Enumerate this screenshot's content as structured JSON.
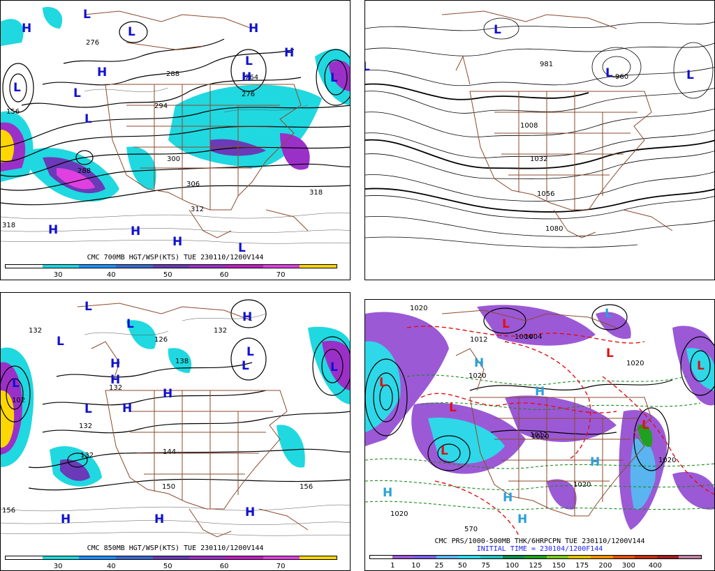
{
  "panels": [
    {
      "id": "p700",
      "caption": "CMC 700MB HGT/WSP(KTS) TUE 230110/1200V144",
      "colorbar": {
        "colors": [
          "#ffffff",
          "#20d8e0",
          "#1e90ff",
          "#3a6ad0",
          "#6a3ab8",
          "#9b30c8",
          "#c020c0",
          "#e040e0",
          "#ffd700"
        ],
        "ticks": [
          "30",
          "40",
          "50",
          "60",
          "70"
        ]
      },
      "contour_labels": [
        "276",
        "288",
        "264",
        "276",
        "294",
        "300",
        "306",
        "312",
        "318",
        "318",
        "156",
        "288"
      ],
      "pressure_centers": [
        "H",
        "L",
        "L",
        "H",
        "H",
        "H",
        "L",
        "H",
        "L",
        "L",
        "L",
        "L",
        "H",
        "H",
        "H",
        "L"
      ]
    },
    {
      "id": "pslp",
      "caption": "",
      "contour_labels": [
        "981",
        "960",
        "1008",
        "1032",
        "1056",
        "1080"
      ],
      "pressure_centers": [
        "L",
        "L",
        "L",
        "L"
      ]
    },
    {
      "id": "p850",
      "caption": "CMC 850MB HGT/WSP(KTS) TUE 230110/1200V144",
      "colorbar": {
        "colors": [
          "#ffffff",
          "#20d8e0",
          "#1e90ff",
          "#3a6ad0",
          "#6a3ab8",
          "#9b30c8",
          "#c020c0",
          "#e040e0",
          "#ffd700"
        ],
        "ticks": [
          "30",
          "40",
          "50",
          "60",
          "70"
        ]
      },
      "contour_labels": [
        "132",
        "132",
        "138",
        "126",
        "132",
        "144",
        "150",
        "156",
        "156",
        "132",
        "132",
        "102"
      ],
      "pressure_centers": [
        "L",
        "L",
        "L",
        "H",
        "H",
        "H",
        "L",
        "H",
        "H",
        "L",
        "L",
        "L",
        "H",
        "H",
        "H",
        "L"
      ]
    },
    {
      "id": "pprs",
      "caption": "CMC PRS/1000-500MB THK/6HRPCPN TUE 230110/1200V144",
      "caption2": "INITIAL TIME = 230104/1200F144",
      "colorbar": {
        "colors": [
          "#ffffff",
          "#9b59d6",
          "#7a5fe8",
          "#5ab4f0",
          "#2ed8e8",
          "#20c0c0",
          "#0c8c4c",
          "#20a020",
          "#78c820",
          "#e0c000",
          "#f09000",
          "#e05010",
          "#c03010",
          "#a02020",
          "#c080a0"
        ],
        "ticks": [
          "1",
          "10",
          "25",
          "50",
          "75",
          "100",
          "125",
          "150",
          "175",
          "200",
          "300",
          "400"
        ]
      },
      "contour_labels": [
        "1020",
        "1012",
        "1004",
        "1020",
        "1012",
        "1020",
        "1020",
        "1020",
        "1020",
        "1020",
        "570",
        "1004"
      ],
      "pressure_centers": [
        "L",
        "L",
        "L",
        "L",
        "L",
        "L",
        "L",
        "H",
        "H",
        "H",
        "H",
        "H",
        "H",
        "L"
      ]
    }
  ]
}
